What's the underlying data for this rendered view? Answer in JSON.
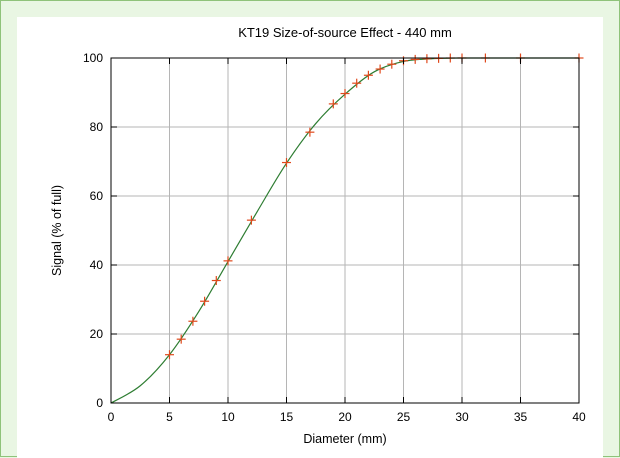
{
  "chart_data": {
    "type": "scatter",
    "title": "KT19 Size-of-source Effect - 440 mm",
    "xlabel": "Diameter (mm)",
    "ylabel": "Signal (% of full)",
    "xlim": [
      0,
      40
    ],
    "ylim": [
      0,
      100
    ],
    "xticks": [
      "0",
      "5",
      "10",
      "15",
      "20",
      "25",
      "30",
      "35",
      "40"
    ],
    "yticks": [
      "0",
      "20",
      "40",
      "60",
      "80",
      "100"
    ],
    "grid": true,
    "legend": "none",
    "colors": {
      "markers": "#e0491c",
      "curve": "#2e7d32",
      "grid": "#b5b5b5"
    },
    "series": [
      {
        "kind": "markers",
        "x": [
          5,
          6,
          7,
          8,
          9,
          10,
          12,
          15,
          17,
          19,
          20,
          21,
          22,
          23,
          24,
          25,
          26,
          27,
          28,
          29,
          30,
          32,
          35,
          40
        ],
        "y": [
          14,
          18.5,
          23.7,
          29.5,
          35.5,
          41.2,
          53,
          69.7,
          78.5,
          86.7,
          89.7,
          92.7,
          95,
          96.8,
          98.2,
          99.2,
          99.6,
          99.8,
          99.9,
          100,
          100,
          100,
          100,
          100
        ]
      },
      {
        "kind": "fitted-curve",
        "x": [
          0,
          2.5,
          5,
          7.5,
          10,
          12.5,
          15,
          17.5,
          20,
          22.5,
          25,
          27.5,
          30,
          35,
          40
        ],
        "y": [
          0,
          5,
          14,
          26.5,
          41,
          55.5,
          69.5,
          81,
          89.5,
          96,
          99,
          99.8,
          100,
          100,
          100
        ]
      }
    ]
  }
}
